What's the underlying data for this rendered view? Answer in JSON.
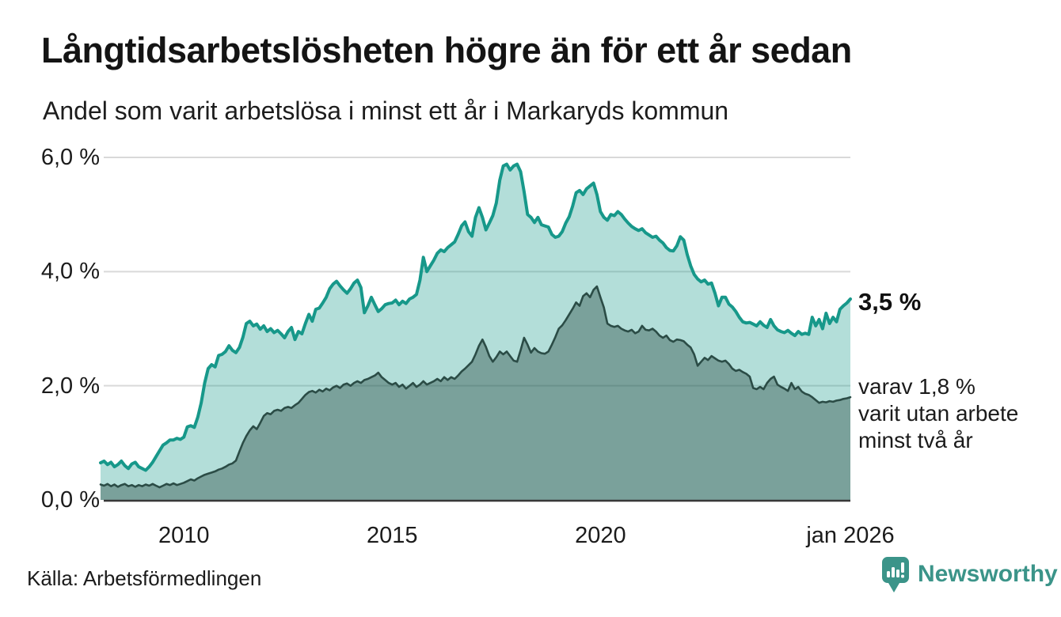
{
  "header": {
    "title": "Långtidsarbetslösheten högre än för ett år sedan",
    "subtitle": "Andel som varit arbetslösa i minst ett år i Markaryds kommun"
  },
  "annotations": {
    "latest_total": "3,5 %",
    "two_year_lines": [
      "varav 1,8 %",
      "varit utan arbete",
      "minst två år"
    ]
  },
  "footer": {
    "source": "Källa: Arbetsförmedlingen",
    "brand": "Newsworthy"
  },
  "colors": {
    "teal_line": "#17988a",
    "teal_fill": "rgba(23,154,140,0.33)",
    "dark_line": "#2b4c46",
    "dark_fill": "rgba(43,76,70,0.42)",
    "gridline": "#d9d9d9",
    "axis": "#383838",
    "brand_teal": "#3b9489",
    "text": "#1a1a1a"
  },
  "chart_data": {
    "type": "area",
    "title": "Långtidsarbetslösheten högre än för ett år sedan",
    "subtitle": "Andel som varit arbetslösa i minst ett år i Markaryds kommun",
    "unit": "%",
    "frequency": "monthly",
    "start": "2008-01",
    "end": "2026-01",
    "ylim": [
      0,
      6.2
    ],
    "grid": true,
    "legend": "none",
    "y_ticks": [
      {
        "value": 0,
        "label": "0,0 %"
      },
      {
        "value": 2,
        "label": "2,0 %"
      },
      {
        "value": 4,
        "label": "4,0 %"
      },
      {
        "value": 6,
        "label": "6,0 %"
      }
    ],
    "x_ticks": [
      {
        "t": 2010,
        "label": "2010"
      },
      {
        "t": 2015,
        "label": "2015"
      },
      {
        "t": 2020,
        "label": "2020"
      },
      {
        "t": 2026,
        "label": "jan 2026"
      }
    ],
    "series": [
      {
        "name": "Arbetslösa minst ett år",
        "end_label": "3,5 %",
        "end_value": 3.5,
        "values": [
          0.65,
          0.68,
          0.62,
          0.66,
          0.58,
          0.62,
          0.68,
          0.6,
          0.55,
          0.63,
          0.66,
          0.58,
          0.55,
          0.52,
          0.58,
          0.66,
          0.76,
          0.86,
          0.96,
          1.0,
          1.05,
          1.05,
          1.08,
          1.06,
          1.1,
          1.28,
          1.3,
          1.27,
          1.45,
          1.7,
          2.05,
          2.3,
          2.37,
          2.33,
          2.53,
          2.55,
          2.6,
          2.7,
          2.62,
          2.58,
          2.67,
          2.85,
          3.09,
          3.13,
          3.05,
          3.08,
          2.99,
          3.05,
          2.95,
          3.0,
          2.93,
          2.97,
          2.91,
          2.84,
          2.95,
          3.02,
          2.81,
          2.95,
          2.91,
          3.09,
          3.25,
          3.13,
          3.34,
          3.36,
          3.45,
          3.55,
          3.7,
          3.78,
          3.83,
          3.75,
          3.68,
          3.62,
          3.7,
          3.8,
          3.85,
          3.72,
          3.28,
          3.4,
          3.55,
          3.42,
          3.3,
          3.35,
          3.42,
          3.44,
          3.45,
          3.5,
          3.42,
          3.48,
          3.44,
          3.52,
          3.55,
          3.6,
          3.85,
          4.25,
          4.0,
          4.1,
          4.2,
          4.32,
          4.38,
          4.35,
          4.42,
          4.47,
          4.52,
          4.65,
          4.8,
          4.87,
          4.7,
          4.62,
          4.95,
          5.12,
          4.95,
          4.73,
          4.85,
          4.98,
          5.2,
          5.6,
          5.85,
          5.88,
          5.78,
          5.85,
          5.88,
          5.75,
          5.4,
          5.0,
          4.95,
          4.86,
          4.95,
          4.82,
          4.8,
          4.78,
          4.65,
          4.6,
          4.62,
          4.7,
          4.85,
          4.96,
          5.15,
          5.38,
          5.42,
          5.35,
          5.45,
          5.5,
          5.55,
          5.35,
          5.05,
          4.95,
          4.9,
          5.0,
          4.98,
          5.05,
          5.0,
          4.92,
          4.85,
          4.79,
          4.75,
          4.72,
          4.75,
          4.68,
          4.64,
          4.6,
          4.62,
          4.55,
          4.5,
          4.42,
          4.37,
          4.36,
          4.45,
          4.61,
          4.55,
          4.3,
          4.1,
          3.95,
          3.87,
          3.82,
          3.85,
          3.78,
          3.8,
          3.62,
          3.4,
          3.55,
          3.55,
          3.43,
          3.38,
          3.3,
          3.2,
          3.12,
          3.1,
          3.11,
          3.08,
          3.05,
          3.12,
          3.06,
          3.02,
          3.16,
          3.05,
          2.98,
          2.95,
          2.93,
          2.97,
          2.92,
          2.88,
          2.95,
          2.9,
          2.92,
          2.9,
          3.2,
          3.05,
          3.16,
          3.0,
          3.27,
          3.09,
          3.2,
          3.12,
          3.34,
          3.4,
          3.45,
          3.52
        ]
      },
      {
        "name": "varav utan arbete minst två år",
        "end_label": "varav 1,8 % varit utan arbete minst två år",
        "end_value": 1.8,
        "values": [
          0.27,
          0.25,
          0.28,
          0.24,
          0.27,
          0.23,
          0.26,
          0.28,
          0.24,
          0.26,
          0.23,
          0.26,
          0.24,
          0.27,
          0.25,
          0.28,
          0.25,
          0.22,
          0.25,
          0.28,
          0.26,
          0.29,
          0.26,
          0.28,
          0.3,
          0.33,
          0.36,
          0.34,
          0.38,
          0.41,
          0.44,
          0.46,
          0.48,
          0.5,
          0.53,
          0.55,
          0.58,
          0.62,
          0.64,
          0.69,
          0.85,
          1.0,
          1.12,
          1.22,
          1.29,
          1.24,
          1.35,
          1.47,
          1.52,
          1.5,
          1.56,
          1.58,
          1.56,
          1.61,
          1.63,
          1.61,
          1.66,
          1.7,
          1.77,
          1.84,
          1.89,
          1.91,
          1.88,
          1.93,
          1.9,
          1.95,
          1.92,
          1.97,
          2.0,
          1.96,
          2.02,
          2.04,
          2.0,
          2.05,
          2.08,
          2.05,
          2.1,
          2.12,
          2.15,
          2.18,
          2.23,
          2.15,
          2.1,
          2.05,
          2.02,
          2.05,
          1.98,
          2.02,
          1.95,
          2.0,
          2.05,
          1.98,
          2.02,
          2.08,
          2.02,
          2.05,
          2.08,
          2.12,
          2.08,
          2.15,
          2.1,
          2.15,
          2.12,
          2.18,
          2.25,
          2.3,
          2.36,
          2.42,
          2.55,
          2.7,
          2.81,
          2.68,
          2.52,
          2.42,
          2.5,
          2.6,
          2.55,
          2.6,
          2.52,
          2.44,
          2.42,
          2.62,
          2.84,
          2.72,
          2.58,
          2.66,
          2.6,
          2.57,
          2.56,
          2.6,
          2.72,
          2.85,
          3.0,
          3.06,
          3.15,
          3.25,
          3.35,
          3.46,
          3.4,
          3.57,
          3.62,
          3.55,
          3.68,
          3.74,
          3.55,
          3.37,
          3.09,
          3.05,
          3.03,
          3.05,
          3.0,
          2.97,
          2.95,
          2.98,
          2.92,
          2.95,
          3.05,
          2.98,
          2.97,
          3.0,
          2.95,
          2.88,
          2.84,
          2.88,
          2.8,
          2.77,
          2.81,
          2.8,
          2.78,
          2.72,
          2.67,
          2.55,
          2.35,
          2.42,
          2.49,
          2.45,
          2.52,
          2.48,
          2.44,
          2.42,
          2.44,
          2.38,
          2.3,
          2.26,
          2.28,
          2.24,
          2.21,
          2.16,
          1.96,
          1.94,
          1.98,
          1.94,
          2.05,
          2.12,
          2.16,
          2.02,
          1.98,
          1.95,
          1.91,
          2.05,
          1.94,
          1.98,
          1.9,
          1.86,
          1.84,
          1.8,
          1.75,
          1.7,
          1.72,
          1.71,
          1.73,
          1.72,
          1.74,
          1.75,
          1.77,
          1.78,
          1.8
        ]
      }
    ]
  }
}
